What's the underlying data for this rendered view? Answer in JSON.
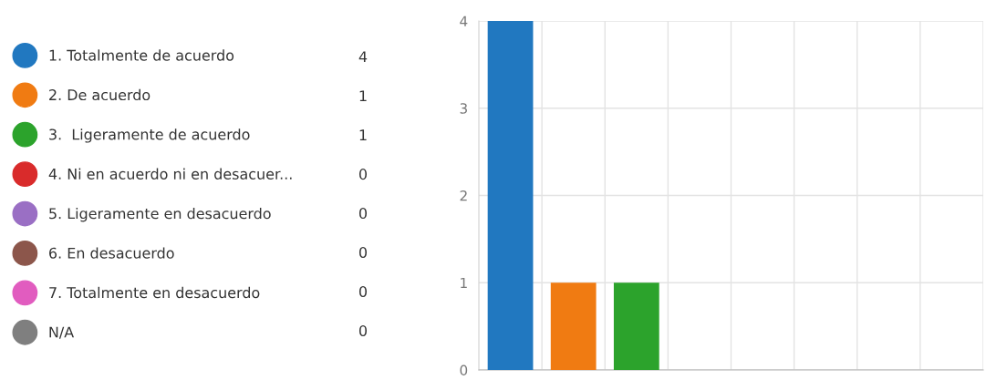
{
  "chart_data": {
    "type": "bar",
    "categories": [
      null,
      null,
      null,
      null,
      null,
      null,
      null,
      null
    ],
    "series": [
      {
        "name": "1. Totalmente de acuerdo",
        "color": "#2178c0",
        "values": [
          4,
          null,
          null,
          null,
          null,
          null,
          null,
          null
        ]
      },
      {
        "name": "2. De acuerdo",
        "color": "#f07b12",
        "values": [
          null,
          1,
          null,
          null,
          null,
          null,
          null,
          null
        ]
      },
      {
        "name": "3.  Ligeramente de acuerdo",
        "color": "#2ca32c",
        "values": [
          null,
          null,
          1,
          null,
          null,
          null,
          null,
          null
        ]
      },
      {
        "name": "4. Ni en acuerdo ni en desacuer...",
        "color": "#d92b2b",
        "values": [
          null,
          null,
          null,
          0,
          null,
          null,
          null,
          null
        ]
      },
      {
        "name": "5. Ligeramente en desacuerdo",
        "color": "#9a6fc4",
        "values": [
          null,
          null,
          null,
          null,
          0,
          null,
          null,
          null
        ]
      },
      {
        "name": "6. En desacuerdo",
        "color": "#8c564b",
        "values": [
          null,
          null,
          null,
          null,
          null,
          0,
          null,
          null
        ]
      },
      {
        "name": "7. Totalmente en desacuerdo",
        "color": "#e15cbf",
        "values": [
          null,
          null,
          null,
          null,
          null,
          null,
          0,
          null
        ]
      },
      {
        "name": "N/A",
        "color": "#7f7f7f",
        "values": [
          null,
          null,
          null,
          null,
          null,
          null,
          null,
          0
        ]
      }
    ],
    "annotations": [
      "4",
      "1",
      "1",
      "0",
      "0",
      "0",
      "0",
      "0"
    ],
    "ylim": [
      0,
      4
    ],
    "yticks": [
      0,
      1,
      2,
      3,
      4
    ],
    "grid": true,
    "legend": "left"
  }
}
